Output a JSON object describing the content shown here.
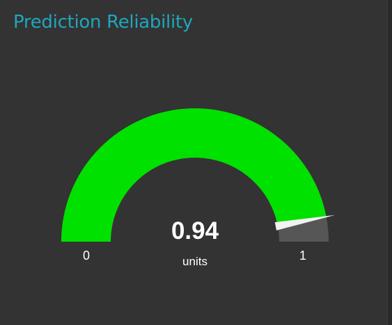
{
  "panel": {
    "title": "Prediction Reliability"
  },
  "gauge": {
    "value": 0.94,
    "value_text": "0.94",
    "units": "units",
    "min": 0,
    "max": 1,
    "min_label": "0",
    "max_label": "1",
    "fill_color": "#00e100",
    "track_color": "#565656",
    "needle_color": "#f2f2f2"
  }
}
